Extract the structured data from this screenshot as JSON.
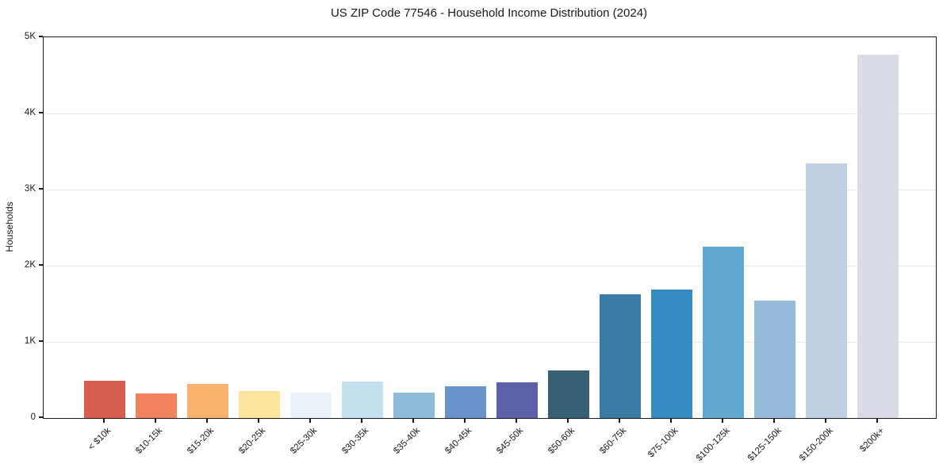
{
  "title": "US ZIP Code 77546 - Household Income Distribution (2024)",
  "chart_data": {
    "type": "bar",
    "title": "US ZIP Code 77546 - Household Income Distribution (2024)",
    "xlabel": "",
    "ylabel": "Households",
    "ylim": [
      0,
      5000
    ],
    "grid": "horizontal",
    "legend": "none",
    "categories": [
      "< $10k",
      "$10-15k",
      "$15-20k",
      "$20-25k",
      "$25-30k",
      "$30-35k",
      "$35-40k",
      "$40-45k",
      "$45-50k",
      "$50-60k",
      "$60-75k",
      "$75-100k",
      "$100-125k",
      "$125-150k",
      "$150-200k",
      "$200k+"
    ],
    "values": [
      490,
      325,
      450,
      350,
      335,
      480,
      330,
      415,
      465,
      620,
      1630,
      1690,
      2250,
      1540,
      3340,
      4770
    ],
    "bar_colors": [
      "#d65f50",
      "#f3835e",
      "#fab36c",
      "#fde39c",
      "#e9f2f6",
      "#c3e1ee",
      "#8fbbdb",
      "#6b93cb",
      "#5c61aa",
      "#386075",
      "#3a7ca5",
      "#358cc3",
      "#60a8d0",
      "#96bada",
      "#c0cfe2",
      "#d9dbe9"
    ],
    "yticks": [
      {
        "value": 0,
        "label": "0"
      },
      {
        "value": 1000,
        "label": "1K"
      },
      {
        "value": 2000,
        "label": "2K"
      },
      {
        "value": 3000,
        "label": "3K"
      },
      {
        "value": 4000,
        "label": "4K"
      },
      {
        "value": 5000,
        "label": "5K"
      }
    ]
  },
  "colors": {
    "background": "#ffffff",
    "spine": "#1a1a1a",
    "grid": "#eaeaea",
    "text": "#1a1a1a"
  }
}
